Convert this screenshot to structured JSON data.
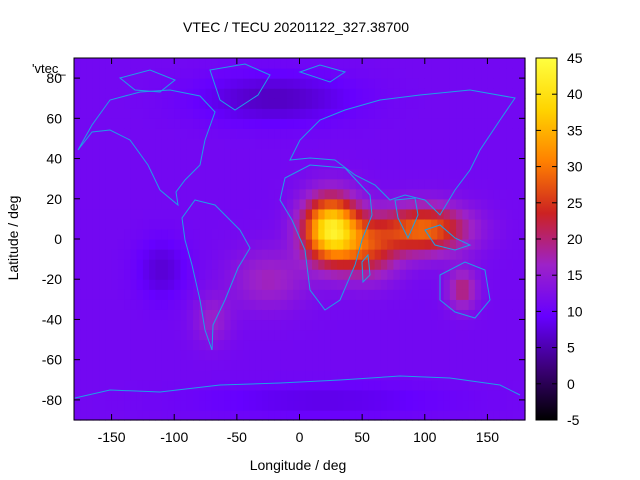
{
  "chart_data": {
    "type": "heatmap",
    "title": "VTEC / TECU 20201122_327.38700",
    "xlabel": "Longitude / deg",
    "ylabel": "Latitude / deg",
    "legend_key": "'vtec_",
    "xlim": [
      -180,
      180
    ],
    "ylim": [
      -90,
      90
    ],
    "x_ticks": [
      -150,
      -100,
      -50,
      0,
      50,
      100,
      150
    ],
    "y_ticks": [
      -80,
      -60,
      -40,
      -20,
      0,
      20,
      40,
      60,
      80
    ],
    "colorbar": {
      "range": [
        -5,
        45
      ],
      "ticks": [
        -5,
        0,
        5,
        10,
        15,
        20,
        25,
        30,
        35,
        40,
        45
      ]
    },
    "palette": [
      "#000000",
      "#3c0078",
      "#6600ff",
      "#9d22c8",
      "#cc2222",
      "#ff8000",
      "#ffd400",
      "#ffff40"
    ],
    "grid_lon_step": 5,
    "grid_lat_step": 5,
    "background_level": 11,
    "features": [
      {
        "lon": 25,
        "lat": 5,
        "sx": 22,
        "sy": 16,
        "amp": 30
      },
      {
        "lon": 100,
        "lat": 5,
        "sx": 35,
        "sy": 12,
        "amp": 18
      },
      {
        "lon": 55,
        "lat": -5,
        "sx": 25,
        "sy": 15,
        "amp": 12
      },
      {
        "lon": 130,
        "lat": -25,
        "sx": 12,
        "sy": 10,
        "amp": 9
      },
      {
        "lon": -25,
        "lat": -20,
        "sx": 30,
        "sy": 15,
        "amp": 6
      },
      {
        "lon": -70,
        "lat": -40,
        "sx": 15,
        "sy": 12,
        "amp": 5
      },
      {
        "lon": -110,
        "lat": -15,
        "sx": 20,
        "sy": 15,
        "amp": -4
      },
      {
        "lon": -20,
        "lat": 70,
        "sx": 60,
        "sy": 12,
        "amp": -5
      },
      {
        "lon": 20,
        "lat": -80,
        "sx": 100,
        "sy": 8,
        "amp": -3
      }
    ]
  }
}
